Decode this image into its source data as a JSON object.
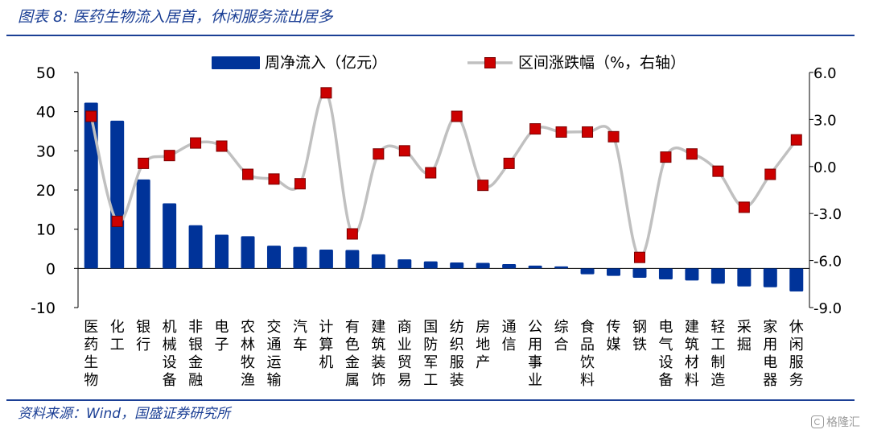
{
  "header": {
    "title": "图表 8:  医药生物流入居首，休闲服务流出居多"
  },
  "footer": {
    "source": "资料来源：Wind，国盛证券研究所",
    "watermark": "格隆汇"
  },
  "colors": {
    "bar": "#003399",
    "line": "#c0c0c0",
    "marker": "#cc0000",
    "marker_edge": "#7a0000",
    "rule": "#1b3f95"
  },
  "chart_data": {
    "type": "bar",
    "categories": [
      "医药生物",
      "化工",
      "银行",
      "机械设备",
      "非银金融",
      "电子",
      "农林牧渔",
      "交通运输",
      "汽车",
      "计算机",
      "有色金属",
      "建筑装饰",
      "商业贸易",
      "国防军工",
      "纺织服装",
      "房地产",
      "通信",
      "公用事业",
      "综合",
      "食品饮料",
      "传媒",
      "钢铁",
      "电气设备",
      "建筑材料",
      "轻工制造",
      "采掘",
      "家用电器",
      "休闲服务"
    ],
    "series": [
      {
        "name": "周净流入（亿元）",
        "type": "bar",
        "axis": "left",
        "values": [
          42.3,
          37.7,
          22.7,
          16.6,
          11.0,
          8.6,
          8.2,
          5.8,
          5.5,
          4.8,
          4.7,
          3.6,
          2.3,
          1.8,
          1.5,
          1.4,
          1.1,
          0.7,
          0.5,
          -1.5,
          -1.9,
          -2.4,
          -2.8,
          -3.1,
          -3.9,
          -4.6,
          -4.8,
          -5.9
        ]
      },
      {
        "name": "区间涨跌幅（%，右轴）",
        "type": "line",
        "axis": "right",
        "values": [
          3.2,
          -3.5,
          0.2,
          0.7,
          1.5,
          1.3,
          -0.5,
          -0.8,
          -1.1,
          4.7,
          -4.3,
          0.8,
          1.0,
          -0.4,
          3.2,
          -1.2,
          0.2,
          2.4,
          2.2,
          2.2,
          1.9,
          -5.8,
          0.6,
          0.8,
          -0.3,
          -2.6,
          -0.5,
          1.7
        ]
      }
    ],
    "y_left": {
      "min": -10,
      "max": 50,
      "step": 10,
      "ticks": [
        "-10",
        "0",
        "10",
        "20",
        "30",
        "40",
        "50"
      ]
    },
    "y_right": {
      "min": -9,
      "max": 6,
      "step": 3,
      "ticks": [
        "-9.0",
        "-6.0",
        "-3.0",
        "0.0",
        "3.0",
        "6.0"
      ]
    },
    "legend_position": "top",
    "grid": false
  }
}
